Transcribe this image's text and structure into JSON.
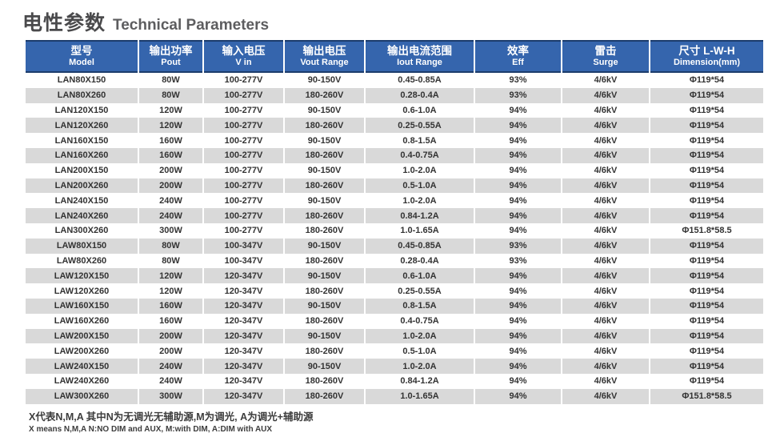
{
  "title": {
    "zh": "电性参数",
    "en": "Technical Parameters"
  },
  "colors": {
    "header_background": "#3565ad",
    "header_border": "#1c3c6c",
    "header_text": "#ffffff",
    "row_alt_background": "#d9d9d9",
    "row_background": "#ffffff",
    "cell_text": "#333333",
    "title_text": "#4a4a4c"
  },
  "table": {
    "columns": [
      {
        "zh": "型号",
        "en": "Model"
      },
      {
        "zh": "输出功率",
        "en": "Pout"
      },
      {
        "zh": "输入电压",
        "en": "V in"
      },
      {
        "zh": "输出电压",
        "en": "Vout Range"
      },
      {
        "zh": "输出电流范围",
        "en": "Iout Range"
      },
      {
        "zh": "效率",
        "en": "Eff"
      },
      {
        "zh": "雷击",
        "en": "Surge"
      },
      {
        "zh": "尺寸 L-W-H",
        "en": "Dimension(mm)"
      }
    ],
    "rows": [
      [
        "LAN80X150",
        "80W",
        "100-277V",
        "90-150V",
        "0.45-0.85A",
        "93%",
        "4/6kV",
        "Φ119*54"
      ],
      [
        "LAN80X260",
        "80W",
        "100-277V",
        "180-260V",
        "0.28-0.4A",
        "93%",
        "4/6kV",
        "Φ119*54"
      ],
      [
        "LAN120X150",
        "120W",
        "100-277V",
        "90-150V",
        "0.6-1.0A",
        "94%",
        "4/6kV",
        "Φ119*54"
      ],
      [
        "LAN120X260",
        "120W",
        "100-277V",
        "180-260V",
        "0.25-0.55A",
        "94%",
        "4/6kV",
        "Φ119*54"
      ],
      [
        "LAN160X150",
        "160W",
        "100-277V",
        "90-150V",
        "0.8-1.5A",
        "94%",
        "4/6kV",
        "Φ119*54"
      ],
      [
        "LAN160X260",
        "160W",
        "100-277V",
        "180-260V",
        "0.4-0.75A",
        "94%",
        "4/6kV",
        "Φ119*54"
      ],
      [
        "LAN200X150",
        "200W",
        "100-277V",
        "90-150V",
        "1.0-2.0A",
        "94%",
        "4/6kV",
        "Φ119*54"
      ],
      [
        "LAN200X260",
        "200W",
        "100-277V",
        "180-260V",
        "0.5-1.0A",
        "94%",
        "4/6kV",
        "Φ119*54"
      ],
      [
        "LAN240X150",
        "240W",
        "100-277V",
        "90-150V",
        "1.0-2.0A",
        "94%",
        "4/6kV",
        "Φ119*54"
      ],
      [
        "LAN240X260",
        "240W",
        "100-277V",
        "180-260V",
        "0.84-1.2A",
        "94%",
        "4/6kV",
        "Φ119*54"
      ],
      [
        "LAN300X260",
        "300W",
        "100-277V",
        "180-260V",
        "1.0-1.65A",
        "94%",
        "4/6kV",
        "Φ151.8*58.5"
      ],
      [
        "LAW80X150",
        "80W",
        "100-347V",
        "90-150V",
        "0.45-0.85A",
        "93%",
        "4/6kV",
        "Φ119*54"
      ],
      [
        "LAW80X260",
        "80W",
        "100-347V",
        "180-260V",
        "0.28-0.4A",
        "93%",
        "4/6kV",
        "Φ119*54"
      ],
      [
        "LAW120X150",
        "120W",
        "120-347V",
        "90-150V",
        "0.6-1.0A",
        "94%",
        "4/6kV",
        "Φ119*54"
      ],
      [
        "LAW120X260",
        "120W",
        "120-347V",
        "180-260V",
        "0.25-0.55A",
        "94%",
        "4/6kV",
        "Φ119*54"
      ],
      [
        "LAW160X150",
        "160W",
        "120-347V",
        "90-150V",
        "0.8-1.5A",
        "94%",
        "4/6kV",
        "Φ119*54"
      ],
      [
        "LAW160X260",
        "160W",
        "120-347V",
        "180-260V",
        "0.4-0.75A",
        "94%",
        "4/6kV",
        "Φ119*54"
      ],
      [
        "LAW200X150",
        "200W",
        "120-347V",
        "90-150V",
        "1.0-2.0A",
        "94%",
        "4/6kV",
        "Φ119*54"
      ],
      [
        "LAW200X260",
        "200W",
        "120-347V",
        "180-260V",
        "0.5-1.0A",
        "94%",
        "4/6kV",
        "Φ119*54"
      ],
      [
        "LAW240X150",
        "240W",
        "120-347V",
        "90-150V",
        "1.0-2.0A",
        "94%",
        "4/6kV",
        "Φ119*54"
      ],
      [
        "LAW240X260",
        "240W",
        "120-347V",
        "180-260V",
        "0.84-1.2A",
        "94%",
        "4/6kV",
        "Φ119*54"
      ],
      [
        "LAW300X260",
        "300W",
        "120-347V",
        "180-260V",
        "1.0-1.65A",
        "94%",
        "4/6kV",
        "Φ151.8*58.5"
      ]
    ]
  },
  "footnote": {
    "zh": "X代表N,M,A 其中N为无调光无辅助源,M为调光, A为调光+辅助源",
    "en": "X means N,M,A  N:NO DIM and AUX, M:with DIM, A:DIM with AUX"
  }
}
